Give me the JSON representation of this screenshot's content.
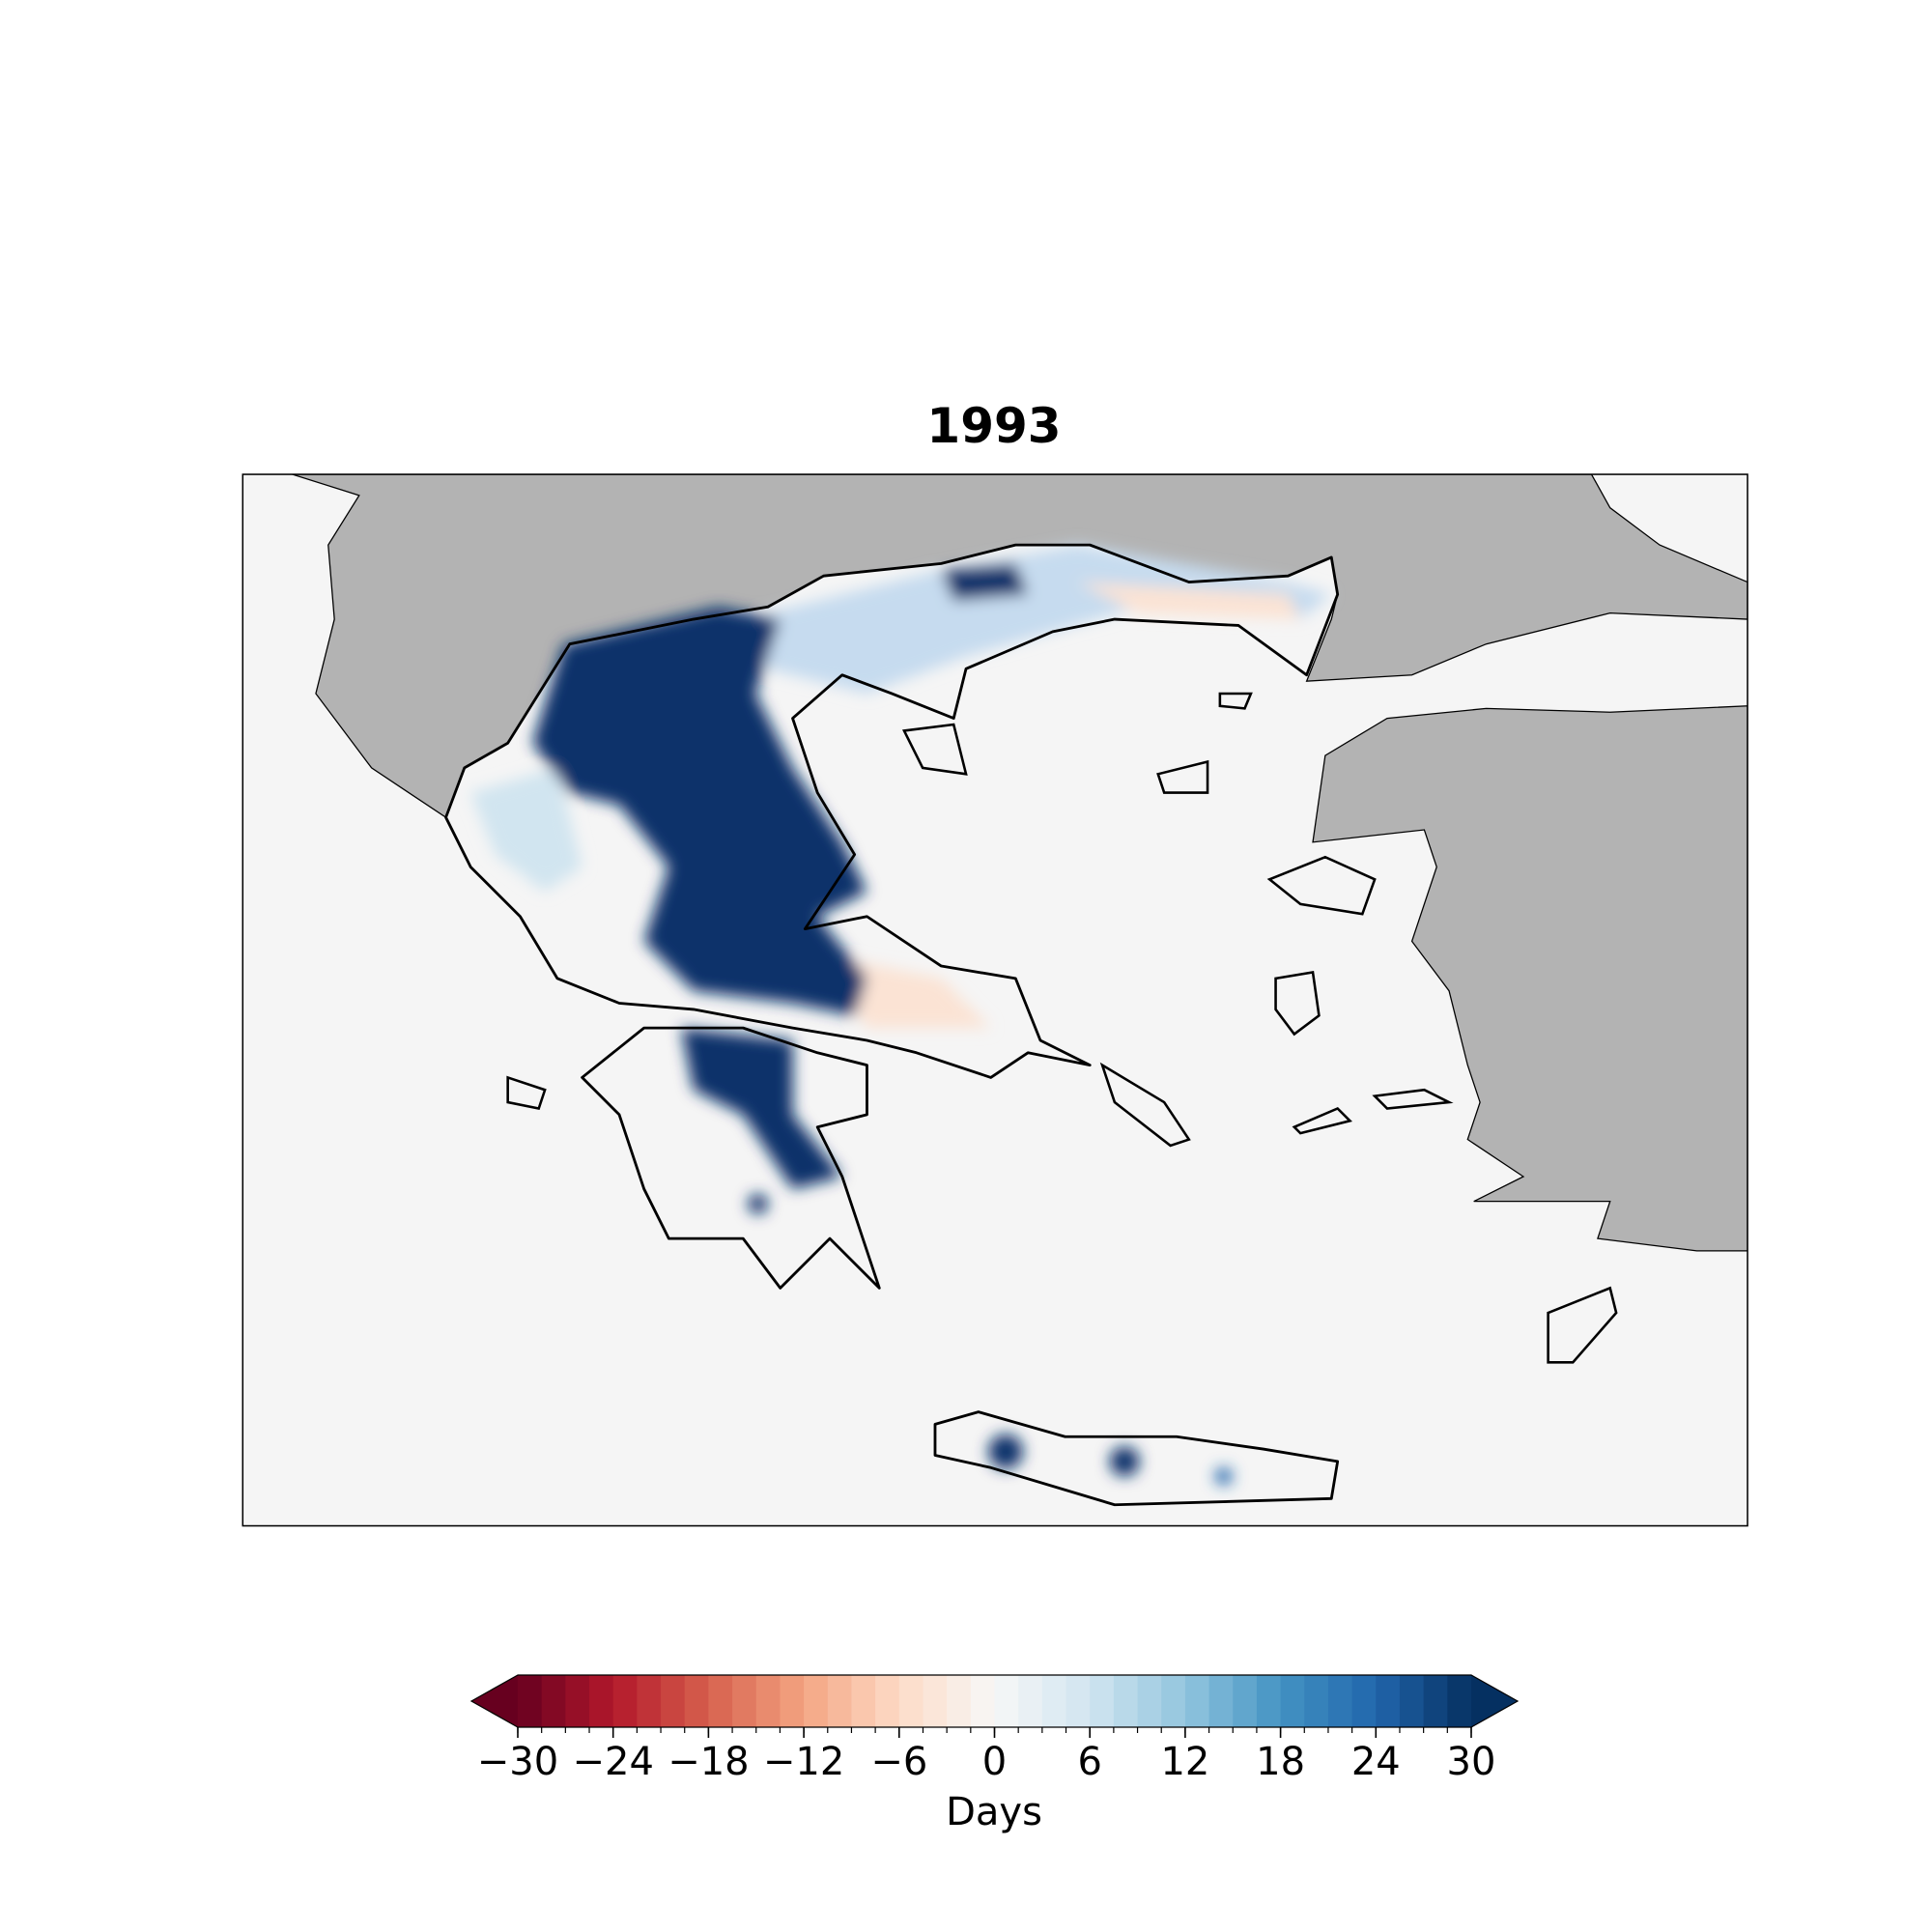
{
  "map": {
    "title": "1993",
    "colorbar": {
      "label": "Days",
      "cmap": "RdBu",
      "extend": "both",
      "n_levels": 40,
      "lim": [
        -30,
        30
      ],
      "ticks": [
        {
          "value": -30,
          "label": "−30"
        },
        {
          "value": -24,
          "label": "−24"
        },
        {
          "value": -18,
          "label": "−18"
        },
        {
          "value": -12,
          "label": "−12"
        },
        {
          "value": -6,
          "label": "−6"
        },
        0,
        6,
        12,
        18,
        24,
        30
      ]
    }
  }
}
